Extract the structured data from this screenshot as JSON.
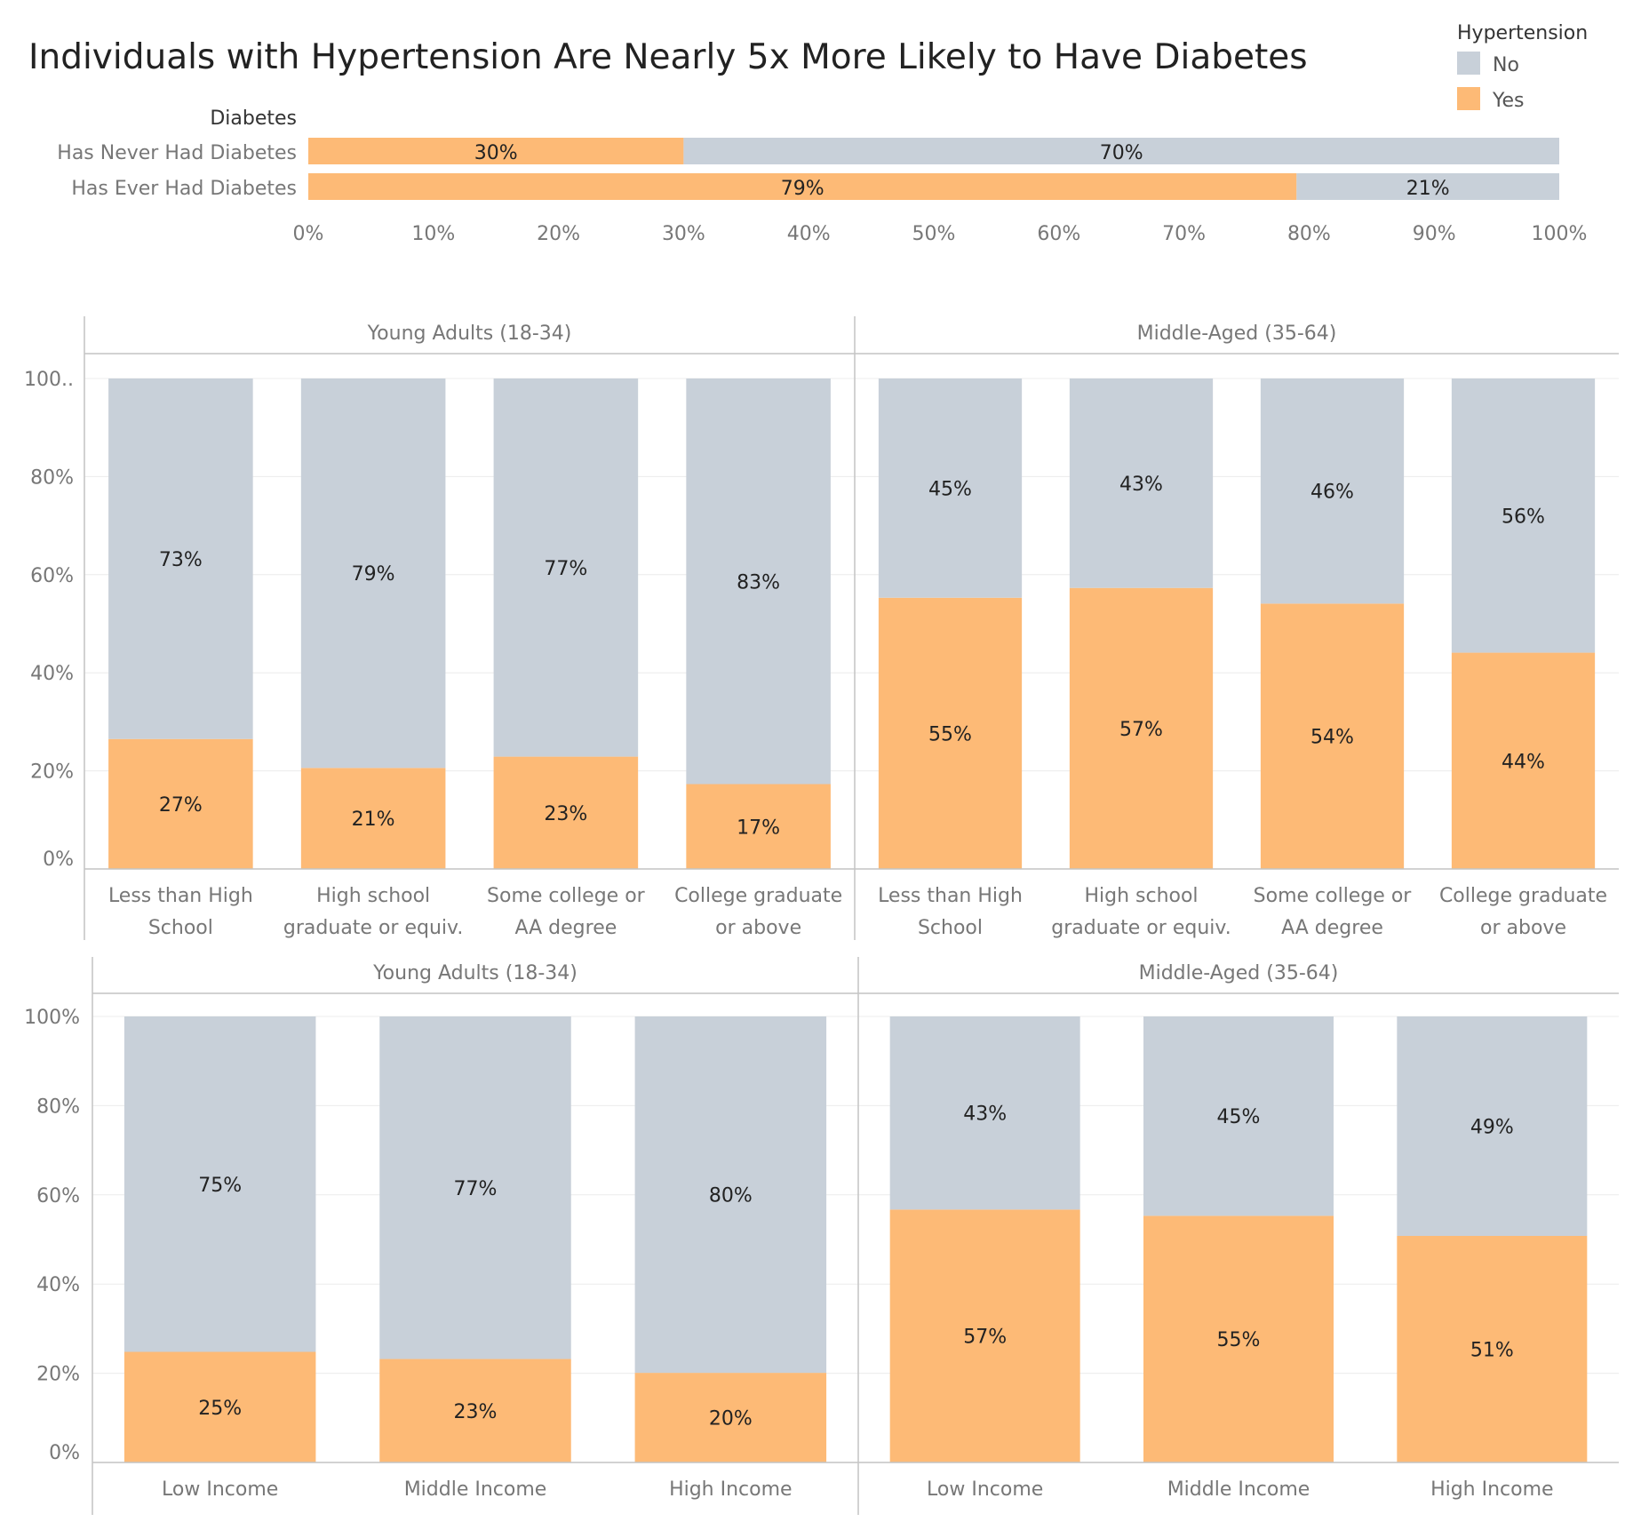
{
  "title": "Individuals with Hypertension Are Nearly 5x More Likely to Have Diabetes",
  "colors": {
    "yes": "#fdba76",
    "no": "#c8d0d9",
    "grid": "#ececec",
    "axis": "#c4c4c4"
  },
  "legend": {
    "title": "Hypertension",
    "items": [
      {
        "label": "No",
        "color": "#c8d0d9"
      },
      {
        "label": "Yes",
        "color": "#fdba76"
      }
    ]
  },
  "chart_data": [
    {
      "type": "bar",
      "orientation": "horizontal",
      "stacked": true,
      "field_label": "Diabetes",
      "categories": [
        "Has Never Had Diabetes",
        "Has Ever Had Diabetes"
      ],
      "series": [
        {
          "name": "Yes",
          "values": [
            30,
            79
          ],
          "labels": [
            "30%",
            "79%"
          ]
        },
        {
          "name": "No",
          "values": [
            70,
            21
          ],
          "labels": [
            "70%",
            "21%"
          ]
        }
      ],
      "xlim": [
        0,
        100
      ],
      "xticks": [
        "0%",
        "10%",
        "20%",
        "30%",
        "40%",
        "50%",
        "60%",
        "70%",
        "80%",
        "90%",
        "100%"
      ]
    },
    {
      "type": "bar",
      "stacked": true,
      "ylim": [
        0,
        100
      ],
      "yticks": [
        "0%",
        "20%",
        "40%",
        "60%",
        "80%",
        "100.."
      ],
      "panels": [
        {
          "title": "Young Adults (18-34)",
          "categories": [
            "Less than High School",
            "High school graduate or equiv.",
            "Some college or AA degree",
            "College graduate or above"
          ],
          "category_lines": [
            [
              "Less than High",
              "School"
            ],
            [
              "High school",
              "graduate or equiv."
            ],
            [
              "Some college or",
              "AA degree"
            ],
            [
              "College graduate",
              "or above"
            ]
          ],
          "series": [
            {
              "name": "Yes",
              "values": [
                26.5,
                20.6,
                22.9,
                17.3
              ],
              "labels": [
                "27%",
                "21%",
                "23%",
                "17%"
              ]
            },
            {
              "name": "No",
              "values": [
                73.5,
                79.4,
                77.1,
                82.7
              ],
              "labels": [
                "73%",
                "79%",
                "77%",
                "83%"
              ]
            }
          ]
        },
        {
          "title": "Middle-Aged (35-64)",
          "categories": [
            "Less than High School",
            "High school graduate or equiv.",
            "Some college or AA degree",
            "College graduate or above"
          ],
          "category_lines": [
            [
              "Less than High",
              "School"
            ],
            [
              "High school",
              "graduate or equiv."
            ],
            [
              "Some college or",
              "AA degree"
            ],
            [
              "College graduate",
              "or above"
            ]
          ],
          "series": [
            {
              "name": "Yes",
              "values": [
                55.3,
                57.3,
                54.1,
                44.1
              ],
              "labels": [
                "55%",
                "57%",
                "54%",
                "44%"
              ]
            },
            {
              "name": "No",
              "values": [
                44.7,
                42.7,
                45.9,
                55.9
              ],
              "labels": [
                "45%",
                "43%",
                "46%",
                "56%"
              ]
            }
          ]
        }
      ]
    },
    {
      "type": "bar",
      "stacked": true,
      "ylim": [
        0,
        100
      ],
      "yticks": [
        "0%",
        "20%",
        "40%",
        "60%",
        "80%",
        "100%"
      ],
      "panels": [
        {
          "title": "Young Adults (18-34)",
          "categories": [
            "Low Income",
            "Middle Income",
            "High Income"
          ],
          "category_lines": [
            [
              "Low Income"
            ],
            [
              "Middle Income"
            ],
            [
              "High Income"
            ]
          ],
          "series": [
            {
              "name": "Yes",
              "values": [
                24.8,
                23.2,
                20.1
              ],
              "labels": [
                "25%",
                "23%",
                "20%"
              ]
            },
            {
              "name": "No",
              "values": [
                75.2,
                76.8,
                79.9
              ],
              "labels": [
                "75%",
                "77%",
                "80%"
              ]
            }
          ]
        },
        {
          "title": "Middle-Aged (35-64)",
          "categories": [
            "Low Income",
            "Middle Income",
            "High Income"
          ],
          "category_lines": [
            [
              "Low Income"
            ],
            [
              "Middle Income"
            ],
            [
              "High Income"
            ]
          ],
          "series": [
            {
              "name": "Yes",
              "values": [
                56.7,
                55.3,
                50.8
              ],
              "labels": [
                "57%",
                "55%",
                "51%"
              ]
            },
            {
              "name": "No",
              "values": [
                43.3,
                44.7,
                49.2
              ],
              "labels": [
                "43%",
                "45%",
                "49%"
              ]
            }
          ]
        }
      ]
    }
  ]
}
